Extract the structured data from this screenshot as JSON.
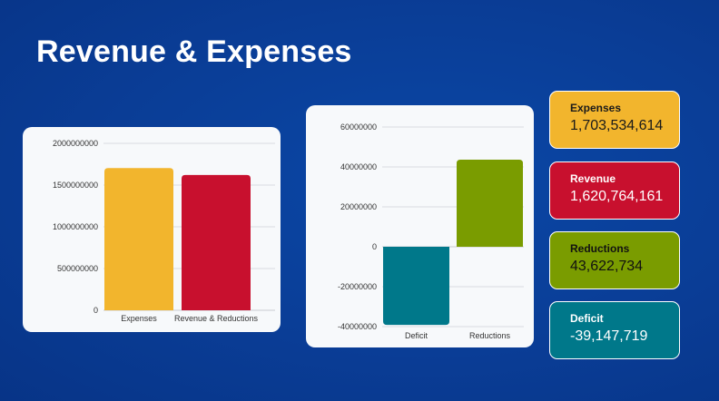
{
  "title": "Revenue & Expenses",
  "cards": [
    {
      "id": "expenses",
      "label": "Expenses",
      "value": "1,703,534,614",
      "color": "#f2b52d"
    },
    {
      "id": "revenue",
      "label": "Revenue",
      "value": "1,620,764,161",
      "color": "#c8102e"
    },
    {
      "id": "reductions",
      "label": "Reductions",
      "value": "43,622,734",
      "color": "#7a9c00"
    },
    {
      "id": "deficit",
      "label": "Deficit",
      "value": "-39,147,719",
      "color": "#00788a"
    }
  ],
  "chart_data": [
    {
      "type": "bar",
      "categories": [
        "Expenses",
        "Revenue & Reductions"
      ],
      "series": [
        {
          "values": [
            1703534614,
            1620764161
          ],
          "colors": [
            "#f2b52d",
            "#c8102e"
          ]
        }
      ],
      "yticks": [
        "2000000000",
        "1500000000",
        "1000000000",
        "500000000",
        "0"
      ],
      "ylim": [
        0,
        2000000000
      ],
      "grid": true,
      "legend": "none"
    },
    {
      "type": "bar",
      "categories": [
        "Deficit",
        "Reductions"
      ],
      "series": [
        {
          "values": [
            -39147719,
            43622734
          ],
          "colors": [
            "#00788a",
            "#7a9c00"
          ]
        }
      ],
      "yticks": [
        "60000000",
        "40000000",
        "20000000",
        "0",
        "-20000000",
        "-40000000"
      ],
      "ylim": [
        -40000000,
        60000000
      ],
      "grid": true,
      "legend": "none"
    }
  ]
}
